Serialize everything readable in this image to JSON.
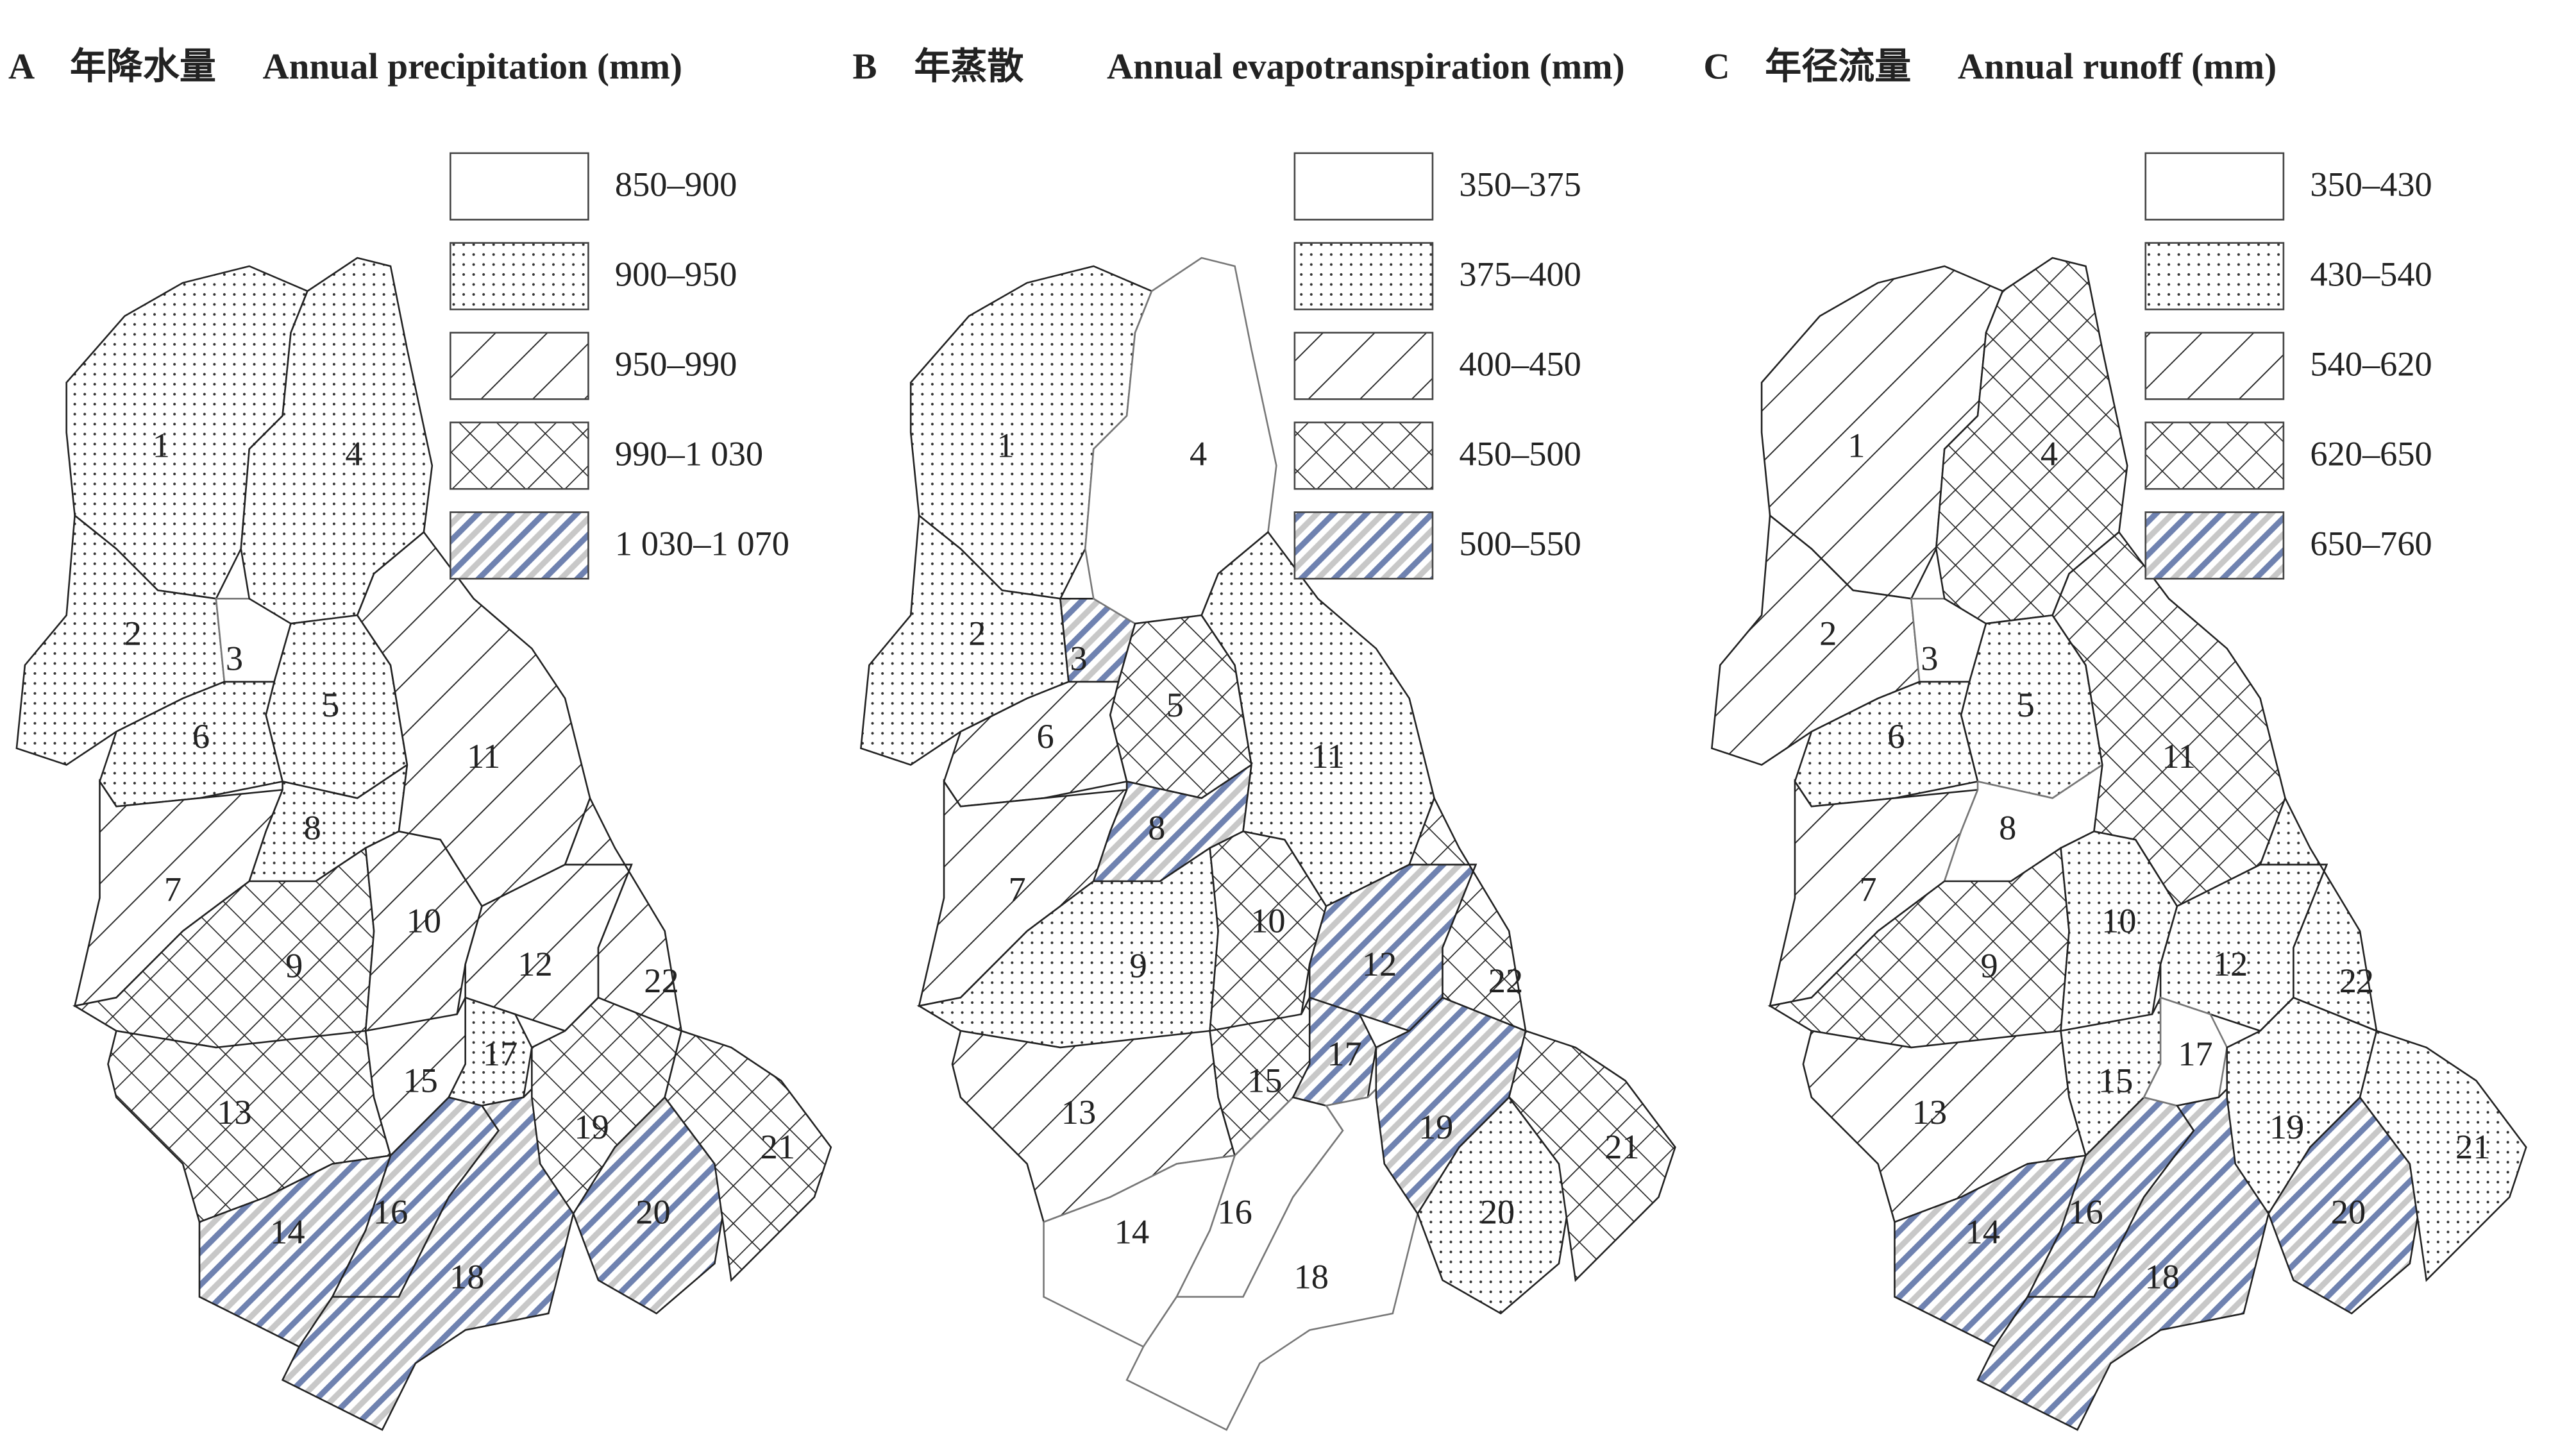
{
  "panels": [
    {
      "letter": "A",
      "title_zh": "年降水量",
      "title_en": "Annual precipitation (mm)",
      "regions": [
        "1",
        "2",
        "3",
        "4",
        "5",
        "6",
        "7",
        "8",
        "9",
        "10",
        "11",
        "12",
        "13",
        "14",
        "15",
        "16",
        "17",
        "18",
        "19",
        "20",
        "21",
        "22"
      ],
      "legend": [
        {
          "label": "850–900",
          "pattern": "none",
          "members": [
            "3"
          ]
        },
        {
          "label": "900–950",
          "pattern": "dots",
          "members": [
            "1",
            "2",
            "4",
            "5",
            "6",
            "8",
            "17"
          ]
        },
        {
          "label": "950–990",
          "pattern": "hatch",
          "members": [
            "7",
            "10",
            "11",
            "12",
            "15",
            "22"
          ]
        },
        {
          "label": "990–1 030",
          "pattern": "cross",
          "members": [
            "9",
            "13",
            "19",
            "21"
          ]
        },
        {
          "label": "1 030–1 070",
          "pattern": "stripe",
          "members": [
            "14",
            "16",
            "18",
            "20"
          ]
        }
      ]
    },
    {
      "letter": "B",
      "title_zh": "年蒸散",
      "title_en": "Annual evapotranspiration (mm)",
      "regions": [
        "1",
        "2",
        "3",
        "4",
        "5",
        "6",
        "7",
        "8",
        "9",
        "10",
        "11",
        "12",
        "13",
        "14",
        "15",
        "16",
        "17",
        "18",
        "19",
        "20",
        "21",
        "22"
      ],
      "legend": [
        {
          "label": "350–375",
          "pattern": "none",
          "members": [
            "4",
            "14",
            "16",
            "18"
          ]
        },
        {
          "label": "375–400",
          "pattern": "dots",
          "members": [
            "1",
            "2",
            "9",
            "11",
            "20"
          ]
        },
        {
          "label": "400–450",
          "pattern": "hatch",
          "members": [
            "6",
            "7",
            "13"
          ]
        },
        {
          "label": "450–500",
          "pattern": "cross",
          "members": [
            "5",
            "10",
            "15",
            "21",
            "22"
          ]
        },
        {
          "label": "500–550",
          "pattern": "stripe",
          "members": [
            "3",
            "8",
            "12",
            "17",
            "19"
          ]
        }
      ]
    },
    {
      "letter": "C",
      "title_zh": "年径流量",
      "title_en": "Annual runoff (mm)",
      "regions": [
        "1",
        "2",
        "3",
        "4",
        "5",
        "6",
        "7",
        "8",
        "9",
        "10",
        "11",
        "12",
        "13",
        "14",
        "15",
        "16",
        "17",
        "18",
        "19",
        "20",
        "21",
        "22"
      ],
      "legend": [
        {
          "label": "350–430",
          "pattern": "none",
          "members": [
            "3",
            "8",
            "17"
          ]
        },
        {
          "label": "430–540",
          "pattern": "dots",
          "members": [
            "5",
            "6",
            "10",
            "12",
            "15",
            "19",
            "21",
            "22"
          ]
        },
        {
          "label": "540–620",
          "pattern": "hatch",
          "members": [
            "1",
            "2",
            "7",
            "13"
          ]
        },
        {
          "label": "620–650",
          "pattern": "cross",
          "members": [
            "4",
            "9",
            "11"
          ]
        },
        {
          "label": "650–760",
          "pattern": "stripe",
          "members": [
            "14",
            "16",
            "18",
            "20"
          ]
        }
      ]
    }
  ]
}
